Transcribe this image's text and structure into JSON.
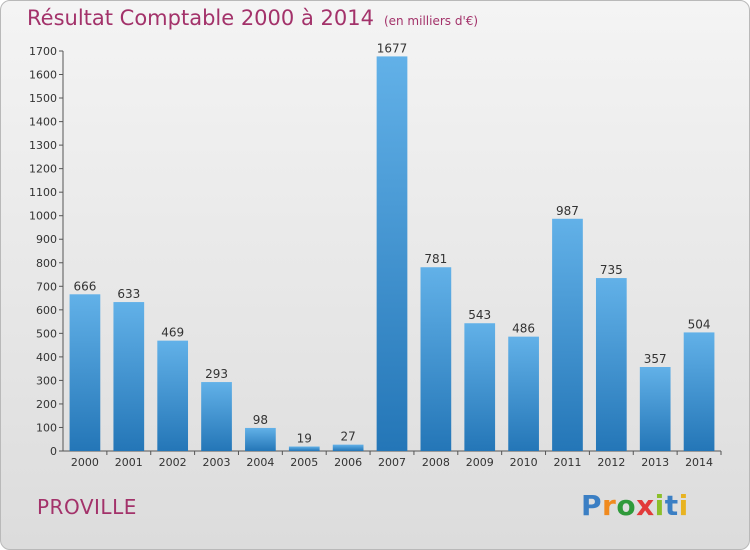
{
  "title": "Résultat Comptable 2000 à 2014",
  "unit": "(en milliers d'€)",
  "town": "PROVILLE",
  "logo": {
    "text": "Proxiti",
    "letters": [
      {
        "ch": "P",
        "color": "#3b7fc4"
      },
      {
        "ch": "r",
        "color": "#f08a1e"
      },
      {
        "ch": "o",
        "color": "#2f9a3a"
      },
      {
        "ch": "x",
        "color": "#e23a3a"
      },
      {
        "ch": "i",
        "color": "#8bbf2a"
      },
      {
        "ch": "t",
        "color": "#3b7fc4"
      },
      {
        "ch": "i",
        "color": "#e8b321"
      }
    ]
  },
  "colors": {
    "title": "#a3326a",
    "bar_top": "#62b1e8",
    "bar_bottom": "#2476b7"
  },
  "chart_data": {
    "type": "bar",
    "title": "Résultat Comptable 2000 à 2014",
    "subtitle": "(en milliers d'€)",
    "xlabel": "",
    "ylabel": "",
    "categories": [
      "2000",
      "2001",
      "2002",
      "2003",
      "2004",
      "2005",
      "2006",
      "2007",
      "2008",
      "2009",
      "2010",
      "2011",
      "2012",
      "2013",
      "2014"
    ],
    "values": [
      666,
      633,
      469,
      293,
      98,
      19,
      27,
      1677,
      781,
      543,
      486,
      987,
      735,
      357,
      504
    ],
    "ylim": [
      0,
      1700
    ],
    "yticks": [
      0,
      100,
      200,
      300,
      400,
      500,
      600,
      700,
      800,
      900,
      1000,
      1100,
      1200,
      1300,
      1400,
      1500,
      1600,
      1700
    ],
    "grid": false,
    "legend": "none"
  }
}
